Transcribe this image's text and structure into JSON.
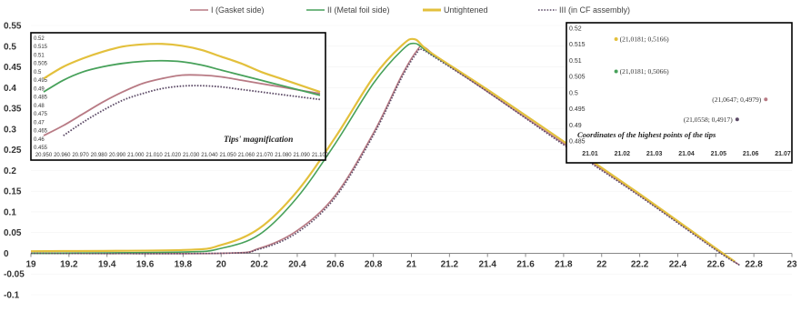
{
  "colors": {
    "gasket": "#b87a84",
    "metal_foil": "#47a15a",
    "untightened": "#e3c03c",
    "cf_assembly": "#5c4a66",
    "axis": "#888888",
    "inset_border": "#000000"
  },
  "chart_data": [
    {
      "id": "main",
      "type": "line",
      "title": "",
      "xlabel": "",
      "ylabel": "",
      "xlim": [
        19,
        23
      ],
      "ylim": [
        -0.1,
        0.55
      ],
      "x_ticks": [
        "19",
        "19.2",
        "19.4",
        "19.6",
        "19.8",
        "20",
        "20.2",
        "20.4",
        "20.6",
        "20.8",
        "21",
        "21.2",
        "21.4",
        "21.6",
        "21.8",
        "22",
        "22.2",
        "22.4",
        "22.6",
        "22.8",
        "23"
      ],
      "y_ticks": [
        "0.55",
        "0.5",
        "0.45",
        "0.4",
        "0.35",
        "0.3",
        "0.25",
        "0.2",
        "0.15",
        "0.1",
        "0.05",
        "0",
        "-0.05",
        "-0.1"
      ],
      "legend_position": "top",
      "series": [
        {
          "name": "I (Gasket side)",
          "color_key": "gasket",
          "dash": "solid",
          "points": [
            [
              19,
              0
            ],
            [
              20,
              0
            ],
            [
              20.2,
              0.012
            ],
            [
              20.4,
              0.055
            ],
            [
              20.6,
              0.14
            ],
            [
              20.8,
              0.29
            ],
            [
              20.95,
              0.43
            ],
            [
              21.03,
              0.49
            ],
            [
              21.065,
              0.498
            ],
            [
              21.15,
              0.468
            ],
            [
              21.4,
              0.39
            ],
            [
              21.8,
              0.265
            ],
            [
              22.2,
              0.14
            ],
            [
              22.6,
              0.01
            ],
            [
              22.72,
              -0.027
            ]
          ]
        },
        {
          "name": "II (Metal foil side)",
          "color_key": "metal_foil",
          "dash": "solid",
          "points": [
            [
              19,
              0
            ],
            [
              19.8,
              0.003
            ],
            [
              20,
              0.012
            ],
            [
              20.2,
              0.045
            ],
            [
              20.4,
              0.135
            ],
            [
              20.6,
              0.265
            ],
            [
              20.8,
              0.41
            ],
            [
              20.95,
              0.49
            ],
            [
              21.018,
              0.5066
            ],
            [
              21.1,
              0.482
            ],
            [
              21.4,
              0.395
            ],
            [
              21.8,
              0.27
            ],
            [
              22.2,
              0.143
            ],
            [
              22.6,
              0.012
            ],
            [
              22.7,
              -0.02
            ]
          ]
        },
        {
          "name": "Untightened",
          "color_key": "untightened",
          "dash": "solid",
          "points": [
            [
              19,
              0.005
            ],
            [
              19.8,
              0.008
            ],
            [
              20,
              0.02
            ],
            [
              20.2,
              0.06
            ],
            [
              20.4,
              0.15
            ],
            [
              20.6,
              0.28
            ],
            [
              20.8,
              0.425
            ],
            [
              20.95,
              0.502
            ],
            [
              21.018,
              0.5166
            ],
            [
              21.1,
              0.485
            ],
            [
              21.4,
              0.395
            ],
            [
              21.8,
              0.27
            ],
            [
              22.2,
              0.143
            ],
            [
              22.6,
              0.012
            ],
            [
              22.7,
              -0.02
            ]
          ]
        },
        {
          "name": "III (in CF assembly)",
          "color_key": "cf_assembly",
          "dash": "dotted",
          "points": [
            [
              19,
              0
            ],
            [
              20,
              0
            ],
            [
              20.2,
              0.01
            ],
            [
              20.4,
              0.05
            ],
            [
              20.6,
              0.135
            ],
            [
              20.8,
              0.285
            ],
            [
              20.95,
              0.425
            ],
            [
              21.03,
              0.485
            ],
            [
              21.056,
              0.4917
            ],
            [
              21.15,
              0.465
            ],
            [
              21.4,
              0.39
            ],
            [
              21.8,
              0.262
            ],
            [
              22.2,
              0.138
            ],
            [
              22.6,
              0.008
            ],
            [
              22.73,
              -0.03
            ]
          ]
        }
      ]
    },
    {
      "id": "tips-inset",
      "type": "line",
      "title": "Tips' magnification",
      "x_ticks": [
        "20.950",
        "20.960",
        "20.970",
        "20.980",
        "20.990",
        "21.000",
        "21.010",
        "21.020",
        "21.030",
        "21.040",
        "21.050",
        "21.060",
        "21.070",
        "21.080",
        "21.090",
        "21.100"
      ],
      "y_ticks": [
        "0.52",
        "0.515",
        "0.51",
        "0.505",
        "0.5",
        "0.495",
        "0.49",
        "0.485",
        "0.48",
        "0.475",
        "0.47",
        "0.465",
        "0.46",
        "0.455"
      ],
      "ylim": [
        0.455,
        0.52
      ],
      "series": [
        {
          "color_key": "gasket",
          "dash": "solid",
          "values": [
            0.462,
            0.468,
            0.475,
            0.482,
            0.488,
            0.493,
            0.496,
            0.498,
            0.498,
            0.497,
            0.495,
            0.493,
            0.491,
            0.489,
            0.487
          ]
        },
        {
          "color_key": "metal_foil",
          "dash": "solid",
          "values": [
            0.488,
            0.495,
            0.5,
            0.503,
            0.505,
            0.5062,
            0.5066,
            0.506,
            0.504,
            0.501,
            0.498,
            0.495,
            0.492,
            0.489,
            0.486
          ]
        },
        {
          "color_key": "untightened",
          "dash": "solid",
          "values": [
            0.496,
            0.503,
            0.508,
            0.512,
            0.515,
            0.5163,
            0.5166,
            0.5155,
            0.513,
            0.509,
            0.505,
            0.5,
            0.496,
            0.492,
            0.488
          ]
        },
        {
          "color_key": "cf_assembly",
          "dash": "dotted",
          "values": [
            0.452,
            0.462,
            0.47,
            0.477,
            0.483,
            0.487,
            0.49,
            0.4915,
            0.4917,
            0.491,
            0.4895,
            0.488,
            0.4865,
            0.485,
            0.4835
          ]
        }
      ]
    },
    {
      "id": "peaks-inset",
      "type": "scatter",
      "title": "Coordinates of the highest points of the tips",
      "xlim": [
        21.01,
        21.07
      ],
      "ylim": [
        0.485,
        0.52
      ],
      "x_ticks": [
        "21.01",
        "21.02",
        "21.03",
        "21.04",
        "21.05",
        "21.06",
        "21.07"
      ],
      "y_ticks": [
        "0.52",
        "0.515",
        "0.51",
        "0.505",
        "0.5",
        "0.495",
        "0.49",
        "0.485"
      ],
      "points": [
        {
          "x": 21.0181,
          "y": 0.5166,
          "label": "(21,0181; 0,5166)",
          "color_key": "untightened"
        },
        {
          "x": 21.0181,
          "y": 0.5066,
          "label": "(21,0181; 0,5066)",
          "color_key": "metal_foil"
        },
        {
          "x": 21.0647,
          "y": 0.4979,
          "label": "(21,0647; 0,4979)",
          "color_key": "gasket"
        },
        {
          "x": 21.0558,
          "y": 0.4917,
          "label": "(21,0558; 0,4917)",
          "color_key": "cf_assembly"
        }
      ]
    }
  ]
}
